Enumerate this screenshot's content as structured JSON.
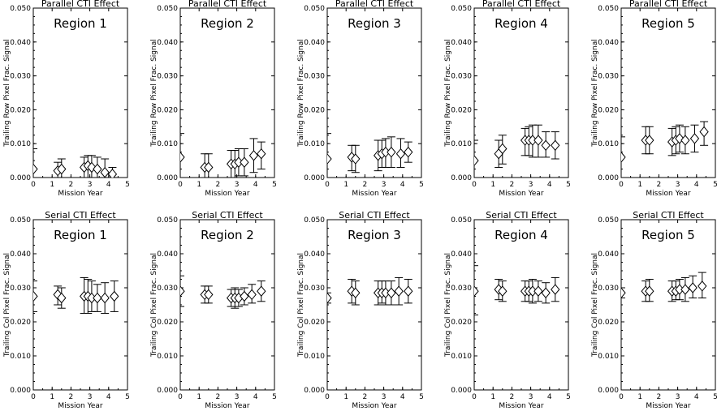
{
  "chart_data": [
    {
      "type": "scatter",
      "title": "Parallel CTI Effect",
      "annotation": "Region 1",
      "xlabel": "Mission Year",
      "ylabel": "Trailing Row Pixel Frac. Signal",
      "xlim": [
        0,
        5
      ],
      "ylim": [
        0,
        0.05
      ],
      "x_ticks": [
        "0",
        "1",
        "2",
        "3",
        "4",
        "5"
      ],
      "y_ticks": [
        "0.000",
        "0.010",
        "0.020",
        "0.030",
        "0.040",
        "0.050"
      ],
      "series": [
        {
          "points": [
            {
              "x": 0.0,
              "y": 0.0025,
              "ylow": 0.0,
              "yhigh": 0.0085
            },
            {
              "x": 1.3,
              "y": 0.002,
              "ylow": 0.0,
              "yhigh": 0.0045
            },
            {
              "x": 1.5,
              "y": 0.0025,
              "ylow": 0.0,
              "yhigh": 0.0055
            },
            {
              "x": 2.7,
              "y": 0.003,
              "ylow": 0.0,
              "yhigh": 0.006
            },
            {
              "x": 2.9,
              "y": 0.0035,
              "ylow": 0.0,
              "yhigh": 0.0065
            },
            {
              "x": 3.1,
              "y": 0.003,
              "ylow": 0.0,
              "yhigh": 0.0065
            },
            {
              "x": 3.4,
              "y": 0.0025,
              "ylow": 0.0,
              "yhigh": 0.006
            },
            {
              "x": 3.8,
              "y": 0.0015,
              "ylow": 0.0,
              "yhigh": 0.0055
            },
            {
              "x": 4.2,
              "y": 0.001,
              "ylow": 0.0,
              "yhigh": 0.003
            }
          ]
        }
      ]
    },
    {
      "type": "scatter",
      "title": "Parallel CTI Effect",
      "annotation": "Region 2",
      "xlabel": "Mission Year",
      "ylabel": "Trailing Row Pixel Frac. Signal",
      "xlim": [
        0,
        5
      ],
      "ylim": [
        0,
        0.05
      ],
      "x_ticks": [
        "0",
        "1",
        "2",
        "3",
        "4",
        "5"
      ],
      "y_ticks": [
        "0.000",
        "0.010",
        "0.020",
        "0.030",
        "0.040",
        "0.050"
      ],
      "series": [
        {
          "points": [
            {
              "x": 0.0,
              "y": 0.006,
              "ylow": 0.0,
              "yhigh": 0.013
            },
            {
              "x": 1.3,
              "y": 0.003,
              "ylow": 0.0,
              "yhigh": 0.007
            },
            {
              "x": 1.5,
              "y": 0.003,
              "ylow": 0.0,
              "yhigh": 0.007
            },
            {
              "x": 2.7,
              "y": 0.004,
              "ylow": 0.0,
              "yhigh": 0.008
            },
            {
              "x": 2.9,
              "y": 0.004,
              "ylow": 0.0,
              "yhigh": 0.008
            },
            {
              "x": 3.1,
              "y": 0.0045,
              "ylow": 0.0005,
              "yhigh": 0.0085
            },
            {
              "x": 3.4,
              "y": 0.0045,
              "ylow": 0.0005,
              "yhigh": 0.0085
            },
            {
              "x": 3.9,
              "y": 0.0065,
              "ylow": 0.0015,
              "yhigh": 0.0115
            },
            {
              "x": 4.3,
              "y": 0.007,
              "ylow": 0.0025,
              "yhigh": 0.0105
            }
          ]
        }
      ]
    },
    {
      "type": "scatter",
      "title": "Parallel CTI Effect",
      "annotation": "Region 3",
      "xlabel": "Mission Year",
      "ylabel": "Trailing Row Pixel Frac. Signal",
      "xlim": [
        0,
        5
      ],
      "ylim": [
        0,
        0.05
      ],
      "x_ticks": [
        "0",
        "1",
        "2",
        "3",
        "4",
        "5"
      ],
      "y_ticks": [
        "0.000",
        "0.010",
        "0.020",
        "0.030",
        "0.040",
        "0.050"
      ],
      "series": [
        {
          "points": [
            {
              "x": 0.0,
              "y": 0.0055,
              "ylow": 0.0,
              "yhigh": 0.013
            },
            {
              "x": 1.3,
              "y": 0.006,
              "ylow": 0.002,
              "yhigh": 0.0095
            },
            {
              "x": 1.5,
              "y": 0.0055,
              "ylow": 0.0015,
              "yhigh": 0.0095
            },
            {
              "x": 2.7,
              "y": 0.0065,
              "ylow": 0.002,
              "yhigh": 0.011
            },
            {
              "x": 2.9,
              "y": 0.007,
              "ylow": 0.003,
              "yhigh": 0.011
            },
            {
              "x": 3.1,
              "y": 0.0075,
              "ylow": 0.003,
              "yhigh": 0.0115
            },
            {
              "x": 3.4,
              "y": 0.0075,
              "ylow": 0.003,
              "yhigh": 0.012
            },
            {
              "x": 3.9,
              "y": 0.007,
              "ylow": 0.003,
              "yhigh": 0.0115
            },
            {
              "x": 4.3,
              "y": 0.0075,
              "ylow": 0.0045,
              "yhigh": 0.0105
            }
          ]
        }
      ]
    },
    {
      "type": "scatter",
      "title": "Parallel CTI Effect",
      "annotation": "Region 4",
      "xlabel": "Mission Year",
      "ylabel": "Trailing Row Pixel Frac. Signal",
      "xlim": [
        0,
        5
      ],
      "ylim": [
        0,
        0.05
      ],
      "x_ticks": [
        "0",
        "1",
        "2",
        "3",
        "4",
        "5"
      ],
      "y_ticks": [
        "0.000",
        "0.010",
        "0.020",
        "0.030",
        "0.040",
        "0.050"
      ],
      "series": [
        {
          "points": [
            {
              "x": 0.0,
              "y": 0.005,
              "ylow": 0.0,
              "yhigh": 0.011
            },
            {
              "x": 1.3,
              "y": 0.007,
              "ylow": 0.003,
              "yhigh": 0.011
            },
            {
              "x": 1.5,
              "y": 0.0085,
              "ylow": 0.004,
              "yhigh": 0.0125
            },
            {
              "x": 2.7,
              "y": 0.011,
              "ylow": 0.0065,
              "yhigh": 0.0145
            },
            {
              "x": 2.9,
              "y": 0.011,
              "ylow": 0.0065,
              "yhigh": 0.015
            },
            {
              "x": 3.1,
              "y": 0.011,
              "ylow": 0.006,
              "yhigh": 0.0155
            },
            {
              "x": 3.4,
              "y": 0.011,
              "ylow": 0.006,
              "yhigh": 0.0155
            },
            {
              "x": 3.8,
              "y": 0.0095,
              "ylow": 0.006,
              "yhigh": 0.0135
            },
            {
              "x": 4.3,
              "y": 0.0095,
              "ylow": 0.0055,
              "yhigh": 0.0135
            }
          ]
        }
      ]
    },
    {
      "type": "scatter",
      "title": "Parallel CTI Effect",
      "annotation": "Region 5",
      "xlabel": "Mission Year",
      "ylabel": "Trailing Row Pixel Frac. Signal",
      "xlim": [
        0,
        5
      ],
      "ylim": [
        0,
        0.05
      ],
      "x_ticks": [
        "0",
        "1",
        "2",
        "3",
        "4",
        "5"
      ],
      "y_ticks": [
        "0.000",
        "0.010",
        "0.020",
        "0.030",
        "0.040",
        "0.050"
      ],
      "series": [
        {
          "points": [
            {
              "x": 0.0,
              "y": 0.006,
              "ylow": 0.0,
              "yhigh": 0.012
            },
            {
              "x": 1.3,
              "y": 0.011,
              "ylow": 0.007,
              "yhigh": 0.015
            },
            {
              "x": 1.5,
              "y": 0.011,
              "ylow": 0.007,
              "yhigh": 0.015
            },
            {
              "x": 2.7,
              "y": 0.0105,
              "ylow": 0.0065,
              "yhigh": 0.0145
            },
            {
              "x": 2.9,
              "y": 0.011,
              "ylow": 0.007,
              "yhigh": 0.015
            },
            {
              "x": 3.1,
              "y": 0.0115,
              "ylow": 0.0075,
              "yhigh": 0.0155
            },
            {
              "x": 3.4,
              "y": 0.011,
              "ylow": 0.007,
              "yhigh": 0.015
            },
            {
              "x": 3.9,
              "y": 0.0115,
              "ylow": 0.0075,
              "yhigh": 0.0155
            },
            {
              "x": 4.4,
              "y": 0.0135,
              "ylow": 0.0095,
              "yhigh": 0.0165
            }
          ]
        }
      ]
    },
    {
      "type": "scatter",
      "title": "Serial CTI Effect",
      "annotation": "Region 1",
      "xlabel": "Mission Year",
      "ylabel": "Trailing Col Pixel Frac. Signal",
      "xlim": [
        0,
        5
      ],
      "ylim": [
        0,
        0.05
      ],
      "x_ticks": [
        "0",
        "1",
        "2",
        "3",
        "4",
        "5"
      ],
      "y_ticks": [
        "0.000",
        "0.010",
        "0.020",
        "0.030",
        "0.040",
        "0.050"
      ],
      "series": [
        {
          "points": [
            {
              "x": 0.0,
              "y": 0.0275,
              "ylow": 0.023,
              "yhigh": 0.032
            },
            {
              "x": 1.3,
              "y": 0.028,
              "ylow": 0.025,
              "yhigh": 0.0305
            },
            {
              "x": 1.5,
              "y": 0.027,
              "ylow": 0.024,
              "yhigh": 0.03
            },
            {
              "x": 2.7,
              "y": 0.0275,
              "ylow": 0.0225,
              "yhigh": 0.033
            },
            {
              "x": 2.9,
              "y": 0.0275,
              "ylow": 0.0225,
              "yhigh": 0.0325
            },
            {
              "x": 3.1,
              "y": 0.027,
              "ylow": 0.023,
              "yhigh": 0.032
            },
            {
              "x": 3.4,
              "y": 0.027,
              "ylow": 0.023,
              "yhigh": 0.031
            },
            {
              "x": 3.8,
              "y": 0.027,
              "ylow": 0.0225,
              "yhigh": 0.0315
            },
            {
              "x": 4.3,
              "y": 0.0275,
              "ylow": 0.023,
              "yhigh": 0.032
            }
          ]
        }
      ]
    },
    {
      "type": "scatter",
      "title": "Serial CTI Effect",
      "annotation": "Region 2",
      "xlabel": "Mission Year",
      "ylabel": "Trailing Col Pixel Frac. Signal",
      "xlim": [
        0,
        5
      ],
      "ylim": [
        0,
        0.05
      ],
      "x_ticks": [
        "0",
        "1",
        "2",
        "3",
        "4",
        "5"
      ],
      "y_ticks": [
        "0.000",
        "0.010",
        "0.020",
        "0.030",
        "0.040",
        "0.050"
      ],
      "series": [
        {
          "points": [
            {
              "x": 0.0,
              "y": 0.029,
              "ylow": 0.0245,
              "yhigh": 0.0335
            },
            {
              "x": 1.3,
              "y": 0.028,
              "ylow": 0.0255,
              "yhigh": 0.0305
            },
            {
              "x": 1.5,
              "y": 0.028,
              "ylow": 0.0255,
              "yhigh": 0.0305
            },
            {
              "x": 2.7,
              "y": 0.027,
              "ylow": 0.0245,
              "yhigh": 0.0295
            },
            {
              "x": 2.9,
              "y": 0.027,
              "ylow": 0.024,
              "yhigh": 0.03
            },
            {
              "x": 3.1,
              "y": 0.027,
              "ylow": 0.0245,
              "yhigh": 0.0295
            },
            {
              "x": 3.4,
              "y": 0.0275,
              "ylow": 0.025,
              "yhigh": 0.03
            },
            {
              "x": 3.8,
              "y": 0.028,
              "ylow": 0.0255,
              "yhigh": 0.031
            },
            {
              "x": 4.3,
              "y": 0.029,
              "ylow": 0.026,
              "yhigh": 0.032
            }
          ]
        }
      ]
    },
    {
      "type": "scatter",
      "title": "Serial CTI Effect",
      "annotation": "Region 3",
      "xlabel": "Mission Year",
      "ylabel": "Trailing Col Pixel Frac. Signal",
      "xlim": [
        0,
        5
      ],
      "ylim": [
        0,
        0.05
      ],
      "x_ticks": [
        "0",
        "1",
        "2",
        "3",
        "4",
        "5"
      ],
      "y_ticks": [
        "0.000",
        "0.010",
        "0.020",
        "0.030",
        "0.040",
        "0.050"
      ],
      "series": [
        {
          "points": [
            {
              "x": 0.0,
              "y": 0.027,
              "ylow": 0.0255,
              "yhigh": 0.0285
            },
            {
              "x": 1.3,
              "y": 0.029,
              "ylow": 0.0255,
              "yhigh": 0.0325
            },
            {
              "x": 1.5,
              "y": 0.0285,
              "ylow": 0.025,
              "yhigh": 0.032
            },
            {
              "x": 2.7,
              "y": 0.0285,
              "ylow": 0.025,
              "yhigh": 0.032
            },
            {
              "x": 2.9,
              "y": 0.0285,
              "ylow": 0.0255,
              "yhigh": 0.032
            },
            {
              "x": 3.1,
              "y": 0.0285,
              "ylow": 0.025,
              "yhigh": 0.032
            },
            {
              "x": 3.4,
              "y": 0.0285,
              "ylow": 0.025,
              "yhigh": 0.032
            },
            {
              "x": 3.8,
              "y": 0.029,
              "ylow": 0.025,
              "yhigh": 0.033
            },
            {
              "x": 4.3,
              "y": 0.029,
              "ylow": 0.0255,
              "yhigh": 0.0325
            }
          ]
        }
      ]
    },
    {
      "type": "scatter",
      "title": "Serial CTI Effect",
      "annotation": "Region 4",
      "xlabel": "Mission Year",
      "ylabel": "Trailing Col Pixel Frac. Signal",
      "xlim": [
        0,
        5
      ],
      "ylim": [
        0,
        0.05
      ],
      "x_ticks": [
        "0",
        "1",
        "2",
        "3",
        "4",
        "5"
      ],
      "y_ticks": [
        "0.000",
        "0.010",
        "0.020",
        "0.030",
        "0.040",
        "0.050"
      ],
      "series": [
        {
          "points": [
            {
              "x": 0.0,
              "y": 0.029,
              "ylow": 0.022,
              "yhigh": 0.0365
            },
            {
              "x": 1.3,
              "y": 0.0295,
              "ylow": 0.0265,
              "yhigh": 0.0325
            },
            {
              "x": 1.5,
              "y": 0.029,
              "ylow": 0.026,
              "yhigh": 0.032
            },
            {
              "x": 2.7,
              "y": 0.029,
              "ylow": 0.026,
              "yhigh": 0.032
            },
            {
              "x": 2.9,
              "y": 0.029,
              "ylow": 0.026,
              "yhigh": 0.032
            },
            {
              "x": 3.1,
              "y": 0.029,
              "ylow": 0.0255,
              "yhigh": 0.0325
            },
            {
              "x": 3.4,
              "y": 0.029,
              "ylow": 0.026,
              "yhigh": 0.032
            },
            {
              "x": 3.8,
              "y": 0.0285,
              "ylow": 0.0255,
              "yhigh": 0.0315
            },
            {
              "x": 4.3,
              "y": 0.0295,
              "ylow": 0.026,
              "yhigh": 0.033
            }
          ]
        }
      ]
    },
    {
      "type": "scatter",
      "title": "Serial CTI Effect",
      "annotation": "Region 5",
      "xlabel": "Mission Year",
      "ylabel": "Trailing Col Pixel Frac. Signal",
      "xlim": [
        0,
        5
      ],
      "ylim": [
        0,
        0.05
      ],
      "x_ticks": [
        "0",
        "1",
        "2",
        "3",
        "4",
        "5"
      ],
      "y_ticks": [
        "0.000",
        "0.010",
        "0.020",
        "0.030",
        "0.040",
        "0.050"
      ],
      "series": [
        {
          "points": [
            {
              "x": 0.0,
              "y": 0.0285,
              "ylow": 0.027,
              "yhigh": 0.03
            },
            {
              "x": 1.3,
              "y": 0.029,
              "ylow": 0.026,
              "yhigh": 0.032
            },
            {
              "x": 1.5,
              "y": 0.029,
              "ylow": 0.026,
              "yhigh": 0.0325
            },
            {
              "x": 2.7,
              "y": 0.029,
              "ylow": 0.026,
              "yhigh": 0.032
            },
            {
              "x": 2.9,
              "y": 0.029,
              "ylow": 0.0265,
              "yhigh": 0.032
            },
            {
              "x": 3.1,
              "y": 0.0295,
              "ylow": 0.0265,
              "yhigh": 0.0325
            },
            {
              "x": 3.4,
              "y": 0.0295,
              "ylow": 0.026,
              "yhigh": 0.033
            },
            {
              "x": 3.8,
              "y": 0.03,
              "ylow": 0.027,
              "yhigh": 0.0335
            },
            {
              "x": 4.3,
              "y": 0.0305,
              "ylow": 0.027,
              "yhigh": 0.0345
            }
          ]
        }
      ]
    }
  ]
}
